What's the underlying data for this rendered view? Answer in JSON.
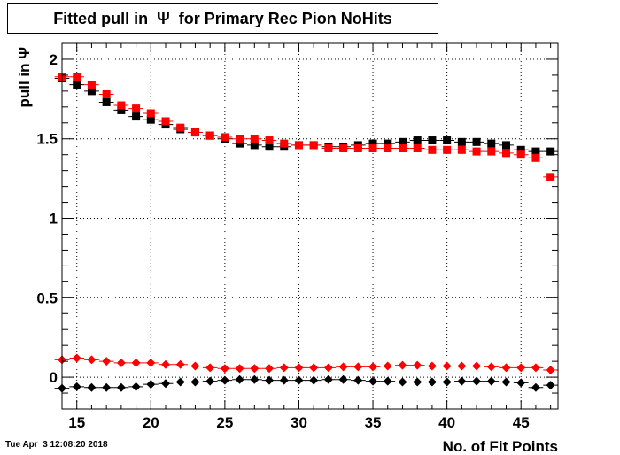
{
  "chart_data": {
    "type": "scatter",
    "title": "Fitted pull in  Ψ  for Primary Rec Pion NoHits",
    "xlabel": "No. of Fit Points",
    "ylabel": "pull in  Ψ",
    "xlim": [
      14,
      47.5
    ],
    "ylim": [
      -0.2,
      2.1
    ],
    "xticks": [
      15,
      20,
      25,
      30,
      35,
      40,
      45
    ],
    "yticks": [
      0,
      0.5,
      1,
      1.5,
      2
    ],
    "ytick_labels": [
      "0",
      "0.5",
      "1",
      "1.5",
      "2"
    ],
    "grid": true,
    "legend": "none",
    "x": [
      14,
      15,
      16,
      17,
      18,
      19,
      20,
      21,
      22,
      23,
      24,
      25,
      26,
      27,
      28,
      29,
      30,
      31,
      32,
      33,
      34,
      35,
      36,
      37,
      38,
      39,
      40,
      41,
      42,
      43,
      44,
      45,
      46,
      47
    ],
    "series": [
      {
        "marker": "square",
        "color": "#000000",
        "values": [
          1.88,
          1.84,
          1.8,
          1.73,
          1.68,
          1.64,
          1.62,
          1.59,
          1.56,
          1.54,
          1.52,
          1.5,
          1.47,
          1.46,
          1.45,
          1.45,
          1.46,
          1.46,
          1.45,
          1.45,
          1.46,
          1.47,
          1.47,
          1.48,
          1.49,
          1.49,
          1.49,
          1.48,
          1.48,
          1.47,
          1.46,
          1.43,
          1.42,
          1.42
        ]
      },
      {
        "marker": "square",
        "color": "#ff0000",
        "values": [
          1.89,
          1.89,
          1.84,
          1.78,
          1.71,
          1.69,
          1.66,
          1.61,
          1.57,
          1.54,
          1.52,
          1.51,
          1.5,
          1.5,
          1.49,
          1.47,
          1.46,
          1.46,
          1.44,
          1.44,
          1.44,
          1.44,
          1.44,
          1.44,
          1.44,
          1.43,
          1.43,
          1.43,
          1.42,
          1.42,
          1.41,
          1.4,
          1.38,
          1.26
        ]
      },
      {
        "marker": "diamond",
        "color": "#ff0000",
        "values": [
          0.11,
          0.12,
          0.11,
          0.1,
          0.09,
          0.09,
          0.09,
          0.08,
          0.08,
          0.07,
          0.06,
          0.055,
          0.055,
          0.055,
          0.055,
          0.06,
          0.06,
          0.06,
          0.06,
          0.065,
          0.065,
          0.065,
          0.07,
          0.075,
          0.075,
          0.07,
          0.07,
          0.07,
          0.07,
          0.065,
          0.06,
          0.06,
          0.06,
          0.045
        ]
      },
      {
        "marker": "diamond",
        "color": "#000000",
        "values": [
          -0.07,
          -0.06,
          -0.065,
          -0.065,
          -0.065,
          -0.06,
          -0.045,
          -0.04,
          -0.03,
          -0.03,
          -0.025,
          -0.02,
          -0.015,
          -0.015,
          -0.02,
          -0.02,
          -0.02,
          -0.02,
          -0.015,
          -0.015,
          -0.02,
          -0.025,
          -0.025,
          -0.03,
          -0.03,
          -0.03,
          -0.03,
          -0.025,
          -0.025,
          -0.025,
          -0.03,
          -0.035,
          -0.065,
          -0.05
        ]
      }
    ]
  },
  "footer": {
    "timestamp": "Tue Apr  3 12:08:20 2018"
  }
}
